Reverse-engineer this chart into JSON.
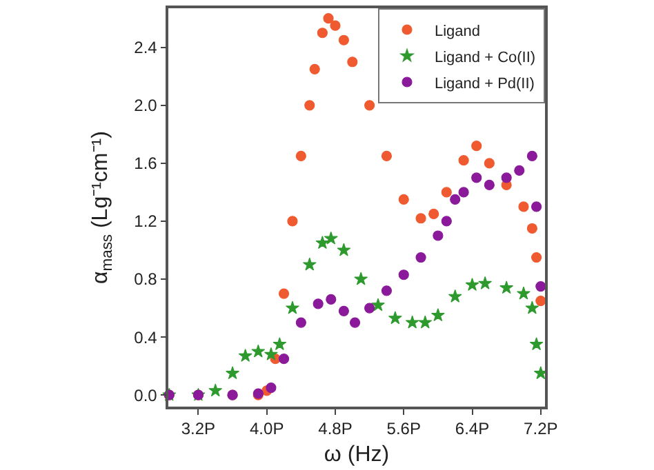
{
  "chart_data": {
    "type": "scatter",
    "xlabel": "ω (Hz)",
    "ylabel": "α$_{mass}$ (Lg⁻¹cm⁻¹)",
    "xlim": [
      2.85,
      7.25
    ],
    "ylim": [
      -0.08,
      2.67
    ],
    "xticks": [
      {
        "value": 3.2,
        "label": "3.2P"
      },
      {
        "value": 4.0,
        "label": "4.0P"
      },
      {
        "value": 4.8,
        "label": "4.8P"
      },
      {
        "value": 5.6,
        "label": "5.6P"
      },
      {
        "value": 6.4,
        "label": "6.4P"
      },
      {
        "value": 7.2,
        "label": "7.2P"
      }
    ],
    "yticks": [
      {
        "value": 0,
        "label": "0.0"
      },
      0.4,
      0.8,
      1.2,
      1.6,
      {
        "value": 2.0,
        "label": "2.0"
      },
      2.4
    ],
    "legend": "top right",
    "series": [
      {
        "name": "Ligand",
        "color": "#f05a30",
        "marker": "circle",
        "x": [
          2.86,
          3.2,
          3.6,
          3.9,
          4.0,
          4.1,
          4.2,
          4.3,
          4.4,
          4.5,
          4.56,
          4.65,
          4.72,
          4.8,
          4.9,
          5.0,
          5.2,
          5.4,
          5.6,
          5.8,
          5.95,
          6.1,
          6.3,
          6.45,
          6.6,
          6.8,
          7.0,
          7.1,
          7.15,
          7.2
        ],
        "values": [
          0.0,
          0.0,
          0.0,
          0.0,
          0.03,
          0.25,
          0.7,
          1.2,
          1.65,
          2.0,
          2.25,
          2.5,
          2.6,
          2.55,
          2.45,
          2.3,
          2.0,
          1.65,
          1.35,
          1.22,
          1.25,
          1.4,
          1.62,
          1.72,
          1.6,
          1.45,
          1.3,
          1.15,
          0.95,
          0.65
        ]
      },
      {
        "name": "Ligand + Co(II)",
        "color": "#2e9a2e",
        "marker": "star",
        "x": [
          2.86,
          3.2,
          3.4,
          3.6,
          3.75,
          3.9,
          4.05,
          4.15,
          4.3,
          4.5,
          4.65,
          4.75,
          4.9,
          5.1,
          5.3,
          5.5,
          5.7,
          5.85,
          6.0,
          6.2,
          6.4,
          6.55,
          6.8,
          7.0,
          7.1,
          7.15,
          7.2
        ],
        "values": [
          0.0,
          0.0,
          0.03,
          0.15,
          0.27,
          0.3,
          0.28,
          0.35,
          0.6,
          0.9,
          1.05,
          1.08,
          1.0,
          0.8,
          0.62,
          0.53,
          0.5,
          0.5,
          0.55,
          0.68,
          0.76,
          0.77,
          0.74,
          0.7,
          0.6,
          0.35,
          0.15
        ]
      },
      {
        "name": "Ligand + Pd(II)",
        "color": "#8a1a9a",
        "marker": "circle",
        "x": [
          2.86,
          3.2,
          3.6,
          3.9,
          4.05,
          4.2,
          4.4,
          4.6,
          4.75,
          4.9,
          5.03,
          5.2,
          5.4,
          5.6,
          5.8,
          6.0,
          6.1,
          6.2,
          6.3,
          6.45,
          6.6,
          6.8,
          6.95,
          7.1,
          7.15,
          7.2
        ],
        "values": [
          0.0,
          0.0,
          0.0,
          0.01,
          0.05,
          0.25,
          0.5,
          0.63,
          0.66,
          0.58,
          0.5,
          0.6,
          0.72,
          0.83,
          0.95,
          1.1,
          1.2,
          1.35,
          1.4,
          1.5,
          1.45,
          1.5,
          1.55,
          1.65,
          1.3,
          0.75
        ]
      }
    ]
  }
}
